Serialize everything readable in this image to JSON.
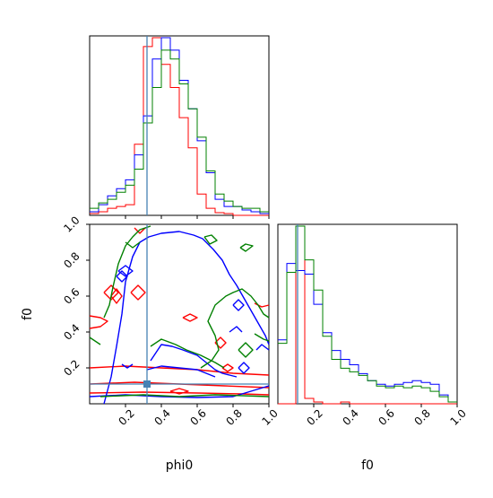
{
  "chart_data": {
    "type": "corner",
    "parameters": [
      "phi0",
      "f0"
    ],
    "truth": {
      "phi0": 0.32,
      "f0": 0.11
    },
    "truth_color": "#4682b4",
    "x_range": [
      0.0,
      1.0
    ],
    "y_range": [
      0.0,
      1.0
    ],
    "tick_labels": [
      "0.2",
      "0.4",
      "0.6",
      "0.8",
      "1.0"
    ],
    "tick_values": [
      0.2,
      0.4,
      0.6,
      0.8,
      1.0
    ],
    "series_colors": [
      "#ff0000",
      "#0000ff",
      "#008000"
    ],
    "hist_phi0": {
      "bins": [
        0.0,
        0.05,
        0.1,
        0.15,
        0.2,
        0.25,
        0.3,
        0.35,
        0.4,
        0.45,
        0.5,
        0.55,
        0.6,
        0.65,
        0.7,
        0.75,
        0.8,
        0.85,
        0.9,
        0.95,
        1.0
      ],
      "series": [
        {
          "color": "#ff0000",
          "values": [
            0.01,
            0.02,
            0.04,
            0.05,
            0.06,
            0.4,
            0.95,
            1.0,
            0.85,
            0.72,
            0.55,
            0.38,
            0.12,
            0.04,
            0.015,
            0.01,
            0.0,
            0.0,
            0.0,
            0.0
          ]
        },
        {
          "color": "#0000ff",
          "values": [
            0.02,
            0.06,
            0.11,
            0.15,
            0.2,
            0.34,
            0.56,
            0.88,
            1.0,
            0.93,
            0.76,
            0.6,
            0.42,
            0.24,
            0.09,
            0.05,
            0.05,
            0.03,
            0.02,
            0.01
          ]
        },
        {
          "color": "#008000",
          "values": [
            0.04,
            0.07,
            0.09,
            0.13,
            0.17,
            0.26,
            0.52,
            0.72,
            0.93,
            0.88,
            0.74,
            0.6,
            0.44,
            0.25,
            0.12,
            0.08,
            0.05,
            0.04,
            0.04,
            0.02
          ]
        }
      ]
    },
    "hist_f0": {
      "bins": [
        0.0,
        0.05,
        0.1,
        0.15,
        0.2,
        0.25,
        0.3,
        0.35,
        0.4,
        0.45,
        0.5,
        0.55,
        0.6,
        0.65,
        0.7,
        0.75,
        0.8,
        0.85,
        0.9,
        0.95,
        1.0
      ],
      "series": [
        {
          "color": "#ff0000",
          "values": [
            0.0,
            0.0,
            1.0,
            0.03,
            0.01,
            0.0,
            0.0,
            0.01,
            0.0,
            0.0,
            0.0,
            0.0,
            0.0,
            0.0,
            0.0,
            0.0,
            0.0,
            0.0,
            0.0,
            0.0
          ]
        },
        {
          "color": "#0000ff",
          "values": [
            0.36,
            0.79,
            0.75,
            0.73,
            0.56,
            0.4,
            0.3,
            0.25,
            0.22,
            0.17,
            0.13,
            0.11,
            0.1,
            0.11,
            0.12,
            0.13,
            0.12,
            0.11,
            0.05,
            0.01
          ]
        },
        {
          "color": "#008000",
          "values": [
            0.34,
            0.74,
            1.0,
            0.81,
            0.64,
            0.38,
            0.25,
            0.2,
            0.18,
            0.16,
            0.13,
            0.1,
            0.09,
            0.1,
            0.09,
            0.1,
            0.09,
            0.07,
            0.04,
            0.01
          ]
        }
      ]
    },
    "contours": [
      {
        "color": "#ff0000",
        "paths": [
          [
            [
              0.0,
              0.2
            ],
            [
              0.2,
              0.21
            ],
            [
              0.4,
              0.2
            ],
            [
              0.6,
              0.19
            ],
            [
              0.8,
              0.17
            ],
            [
              1.0,
              0.16
            ]
          ],
          [
            [
              0.0,
              0.11
            ],
            [
              0.25,
              0.12
            ],
            [
              0.5,
              0.11
            ],
            [
              0.75,
              0.1
            ],
            [
              1.0,
              0.09
            ]
          ],
          [
            [
              0.0,
              0.06
            ],
            [
              0.3,
              0.065
            ],
            [
              0.6,
              0.06
            ],
            [
              0.85,
              0.055
            ],
            [
              1.0,
              0.05
            ]
          ],
          [
            [
              0.45,
              0.07
            ],
            [
              0.5,
              0.055
            ],
            [
              0.55,
              0.07
            ],
            [
              0.5,
              0.085
            ],
            [
              0.45,
              0.07
            ]
          ],
          [
            [
              0.0,
              0.49
            ],
            [
              0.06,
              0.48
            ],
            [
              0.1,
              0.46
            ],
            [
              0.06,
              0.43
            ],
            [
              0.0,
              0.42
            ]
          ],
          [
            [
              0.08,
              0.62
            ],
            [
              0.12,
              0.58
            ],
            [
              0.16,
              0.62
            ],
            [
              0.12,
              0.66
            ],
            [
              0.08,
              0.62
            ]
          ],
          [
            [
              0.12,
              0.6
            ],
            [
              0.15,
              0.56
            ],
            [
              0.18,
              0.6
            ],
            [
              0.15,
              0.64
            ],
            [
              0.12,
              0.6
            ]
          ],
          [
            [
              0.23,
              0.62
            ],
            [
              0.27,
              0.58
            ],
            [
              0.31,
              0.62
            ],
            [
              0.27,
              0.66
            ],
            [
              0.23,
              0.62
            ]
          ],
          [
            [
              0.52,
              0.48
            ],
            [
              0.56,
              0.46
            ],
            [
              0.6,
              0.48
            ],
            [
              0.56,
              0.5
            ],
            [
              0.52,
              0.48
            ]
          ],
          [
            [
              0.25,
              0.98
            ],
            [
              0.28,
              0.95
            ],
            [
              0.31,
              0.98
            ]
          ],
          [
            [
              0.7,
              0.34
            ],
            [
              0.73,
              0.31
            ],
            [
              0.76,
              0.34
            ],
            [
              0.73,
              0.37
            ],
            [
              0.7,
              0.34
            ]
          ],
          [
            [
              0.74,
              0.2
            ],
            [
              0.77,
              0.18
            ],
            [
              0.8,
              0.2
            ],
            [
              0.77,
              0.22
            ],
            [
              0.74,
              0.2
            ]
          ],
          [
            [
              0.92,
              0.56
            ],
            [
              0.96,
              0.54
            ],
            [
              1.0,
              0.55
            ]
          ]
        ]
      },
      {
        "color": "#0000ff",
        "paths": [
          [
            [
              0.08,
              0.0
            ],
            [
              0.12,
              0.15
            ],
            [
              0.15,
              0.32
            ],
            [
              0.18,
              0.5
            ],
            [
              0.2,
              0.68
            ],
            [
              0.24,
              0.82
            ],
            [
              0.28,
              0.9
            ],
            [
              0.33,
              0.93
            ],
            [
              0.4,
              0.95
            ],
            [
              0.5,
              0.96
            ],
            [
              0.58,
              0.94
            ],
            [
              0.63,
              0.92
            ],
            [
              0.69,
              0.86
            ],
            [
              0.74,
              0.8
            ],
            [
              0.78,
              0.72
            ],
            [
              0.82,
              0.66
            ],
            [
              0.86,
              0.59
            ],
            [
              0.9,
              0.52
            ],
            [
              0.94,
              0.45
            ],
            [
              0.98,
              0.38
            ],
            [
              1.0,
              0.33
            ]
          ],
          [
            [
              0.34,
              0.24
            ],
            [
              0.4,
              0.33
            ],
            [
              0.46,
              0.32
            ],
            [
              0.52,
              0.3
            ],
            [
              0.6,
              0.27
            ],
            [
              0.65,
              0.23
            ],
            [
              0.7,
              0.19
            ],
            [
              0.74,
              0.17
            ],
            [
              0.78,
              0.16
            ],
            [
              0.82,
              0.15
            ]
          ],
          [
            [
              0.32,
              0.19
            ],
            [
              0.4,
              0.21
            ],
            [
              0.5,
              0.2
            ],
            [
              0.6,
              0.19
            ],
            [
              0.7,
              0.15
            ]
          ],
          [
            [
              0.0,
              0.04
            ],
            [
              0.2,
              0.05
            ],
            [
              0.4,
              0.04
            ],
            [
              0.6,
              0.035
            ],
            [
              0.8,
              0.04
            ],
            [
              1.0,
              0.1
            ]
          ],
          [
            [
              0.18,
              0.22
            ],
            [
              0.21,
              0.2
            ],
            [
              0.24,
              0.22
            ]
          ],
          [
            [
              0.16,
              0.74
            ],
            [
              0.2,
              0.71
            ],
            [
              0.24,
              0.74
            ],
            [
              0.2,
              0.77
            ],
            [
              0.16,
              0.74
            ]
          ],
          [
            [
              0.15,
              0.71
            ],
            [
              0.18,
              0.68
            ],
            [
              0.21,
              0.71
            ],
            [
              0.18,
              0.74
            ],
            [
              0.15,
              0.71
            ]
          ],
          [
            [
              0.8,
              0.55
            ],
            [
              0.83,
              0.52
            ],
            [
              0.86,
              0.55
            ],
            [
              0.83,
              0.58
            ],
            [
              0.8,
              0.55
            ]
          ],
          [
            [
              0.83,
              0.2
            ],
            [
              0.86,
              0.17
            ],
            [
              0.89,
              0.2
            ],
            [
              0.86,
              0.23
            ],
            [
              0.83,
              0.2
            ]
          ],
          [
            [
              0.78,
              0.4
            ],
            [
              0.82,
              0.43
            ],
            [
              0.85,
              0.4
            ]
          ],
          [
            [
              0.93,
              0.3
            ],
            [
              0.96,
              0.33
            ],
            [
              1.0,
              0.3
            ]
          ]
        ]
      },
      {
        "color": "#008000",
        "paths": [
          [
            [
              0.08,
              0.48
            ],
            [
              0.11,
              0.55
            ],
            [
              0.13,
              0.65
            ],
            [
              0.16,
              0.78
            ],
            [
              0.2,
              0.88
            ],
            [
              0.24,
              0.93
            ],
            [
              0.28,
              0.97
            ],
            [
              0.34,
              0.99
            ]
          ],
          [
            [
              0.2,
              0.9
            ],
            [
              0.24,
              0.87
            ],
            [
              0.28,
              0.9
            ]
          ],
          [
            [
              0.34,
              0.32
            ],
            [
              0.4,
              0.36
            ],
            [
              0.48,
              0.33
            ],
            [
              0.54,
              0.3
            ],
            [
              0.62,
              0.27
            ],
            [
              0.7,
              0.23
            ],
            [
              0.75,
              0.2
            ]
          ],
          [
            [
              0.62,
              0.2
            ],
            [
              0.68,
              0.24
            ],
            [
              0.72,
              0.3
            ],
            [
              0.7,
              0.38
            ],
            [
              0.66,
              0.46
            ],
            [
              0.7,
              0.55
            ],
            [
              0.76,
              0.6
            ],
            [
              0.8,
              0.62
            ],
            [
              0.85,
              0.64
            ],
            [
              0.9,
              0.6
            ],
            [
              0.94,
              0.55
            ],
            [
              0.97,
              0.5
            ],
            [
              1.0,
              0.48
            ]
          ],
          [
            [
              0.83,
              0.3
            ],
            [
              0.87,
              0.26
            ],
            [
              0.91,
              0.3
            ],
            [
              0.87,
              0.34
            ],
            [
              0.83,
              0.3
            ]
          ],
          [
            [
              0.84,
              0.87
            ],
            [
              0.87,
              0.89
            ],
            [
              0.91,
              0.88
            ],
            [
              0.87,
              0.85
            ],
            [
              0.84,
              0.87
            ]
          ],
          [
            [
              0.64,
              0.93
            ],
            [
              0.68,
              0.94
            ],
            [
              0.71,
              0.91
            ],
            [
              0.67,
              0.89
            ],
            [
              0.64,
              0.93
            ]
          ],
          [
            [
              0.0,
              0.37
            ],
            [
              0.03,
              0.35
            ],
            [
              0.06,
              0.33
            ]
          ],
          [
            [
              0.06,
              0.04
            ],
            [
              0.3,
              0.05
            ],
            [
              0.5,
              0.04
            ],
            [
              0.7,
              0.05
            ],
            [
              1.0,
              0.04
            ]
          ],
          [
            [
              0.92,
              0.39
            ],
            [
              0.97,
              0.36
            ],
            [
              1.0,
              0.35
            ]
          ]
        ]
      }
    ]
  },
  "labels": {
    "x_phi0": "phi0",
    "y_f0": "f0",
    "x_f0": "f0"
  }
}
